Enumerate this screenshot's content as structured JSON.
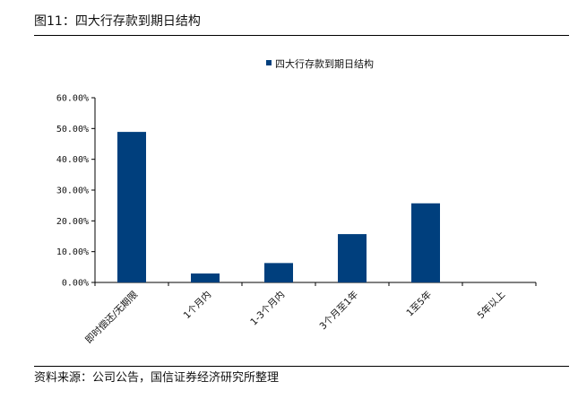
{
  "figure": {
    "title": "图11：四大行存款到期日结构",
    "source": "资料来源：公司公告，国信证券经济研究所整理"
  },
  "colors": {
    "bar": "#003f7d",
    "axis": "#000000",
    "text": "#111111"
  },
  "chart_data": {
    "type": "bar",
    "categories": [
      "即时偿还/无期限",
      "1个月内",
      "1-3个月内",
      "3个月至1年",
      "1至5年",
      "5年以上"
    ],
    "series": [
      {
        "name": "四大行存款到期日结构",
        "values": [
          48.9,
          2.9,
          6.3,
          15.7,
          25.7,
          0.0
        ]
      }
    ],
    "y_tick_labels": [
      "0.00%",
      "10.00%",
      "20.00%",
      "30.00%",
      "40.00%",
      "50.00%",
      "60.00%"
    ],
    "ylim": [
      0,
      60
    ],
    "grid": false,
    "legend": "top-center",
    "title": "",
    "xlabel": "",
    "ylabel": ""
  }
}
